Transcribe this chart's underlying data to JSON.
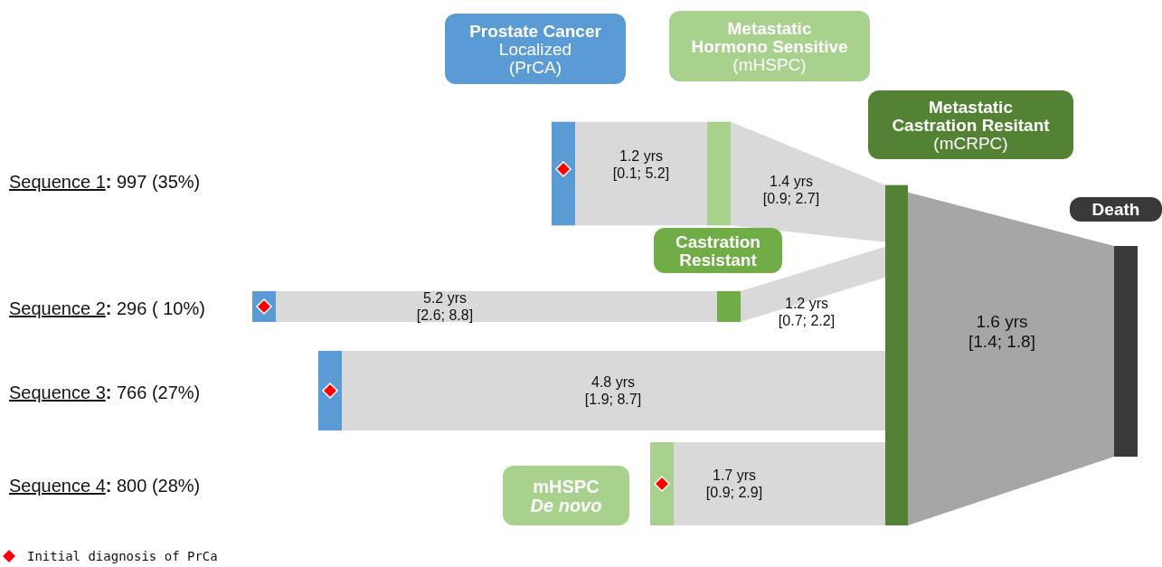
{
  "chart_data": {
    "type": "other",
    "categories": [
      "Sequence 1",
      "Sequence 2",
      "Sequence 3",
      "Sequence 4"
    ],
    "values": [
      997,
      296,
      766,
      800
    ],
    "value_labels": [
      ": 997 (35%)",
      ": 296 ( 10%)",
      ": 766 (27%)",
      ": 800 (28%)"
    ],
    "annotations": [
      "Prostate Cancer\nLocalized\n(PrCA)",
      "Metastatic\nHormono Sensitive\n(mHSPC)",
      "Metastatic\nCastration Resitant\n(mCRPC)",
      "Castration\nResistant",
      "Death",
      "mHSPC\nDe novo",
      "1.2 yrs\n[0.1; 5.2]",
      "1.4 yrs\n[0.9; 2.7]",
      "5.2 yrs\n[2.6; 8.8]",
      "1.2 yrs\n[0.7; 2.2]",
      "4.8 yrs\n[1.9; 8.7]",
      "1.7 yrs\n[0.9; 2.9]",
      "1.6 yrs\n[1.4; 1.8]",
      "Initial diagnosis of PrCa"
    ]
  }
}
